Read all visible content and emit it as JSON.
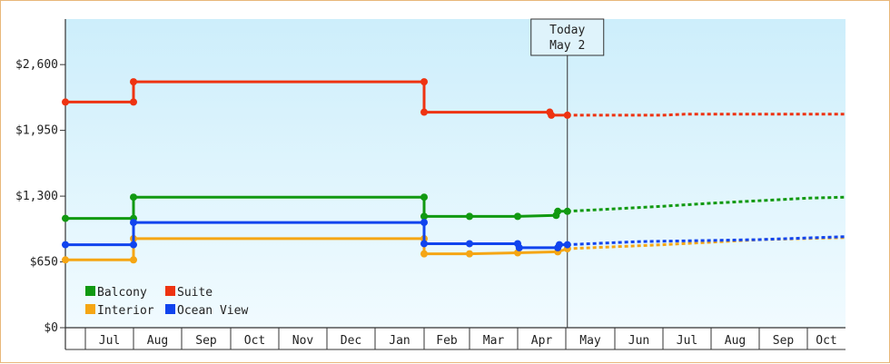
{
  "chart_data": {
    "type": "line",
    "title": "",
    "xlabel": "",
    "ylabel": "",
    "x_axis_months": [
      "Jul",
      "Aug",
      "Sep",
      "Oct",
      "Nov",
      "Dec",
      "Jan",
      "Feb",
      "Mar",
      "Apr",
      "May",
      "Jun",
      "Jul",
      "Aug",
      "Sep",
      "Oct"
    ],
    "yticks": [
      0,
      650,
      1300,
      1950,
      2600
    ],
    "ytick_labels": [
      "$0",
      "$650",
      "$1,300",
      "$1,950",
      "$2,600"
    ],
    "ylim": [
      0,
      3050
    ],
    "grid": false,
    "legend_position": "bottom-left",
    "today_marker": {
      "line1": "Today",
      "line2": "May 2",
      "date": "May 2"
    },
    "series": [
      {
        "name": "Balcony",
        "color": "#119911",
        "history": [
          {
            "date": "Jun 1",
            "value": 1080
          },
          {
            "date": "Aug 1",
            "value": 1080
          },
          {
            "date": "Aug 1",
            "value": 1290
          },
          {
            "date": "Feb 1",
            "value": 1290
          },
          {
            "date": "Feb 1",
            "value": 1100
          },
          {
            "date": "Mar 1",
            "value": 1100
          },
          {
            "date": "Apr 1",
            "value": 1100
          },
          {
            "date": "Apr 25",
            "value": 1110
          },
          {
            "date": "Apr 26",
            "value": 1150
          },
          {
            "date": "May 2",
            "value": 1150
          }
        ],
        "forecast": [
          {
            "date": "May 2",
            "value": 1150
          },
          {
            "date": "Jul 1",
            "value": 1200
          },
          {
            "date": "Aug 1",
            "value": 1230
          },
          {
            "date": "Oct 1",
            "value": 1280
          },
          {
            "date": "Oct 31",
            "value": 1290
          }
        ]
      },
      {
        "name": "Suite",
        "color": "#ee3311",
        "history": [
          {
            "date": "Jun 1",
            "value": 2230
          },
          {
            "date": "Aug 1",
            "value": 2230
          },
          {
            "date": "Aug 1",
            "value": 2430
          },
          {
            "date": "Feb 1",
            "value": 2430
          },
          {
            "date": "Feb 1",
            "value": 2130
          },
          {
            "date": "Apr 21",
            "value": 2130
          },
          {
            "date": "Apr 22",
            "value": 2100
          },
          {
            "date": "May 2",
            "value": 2100
          }
        ],
        "forecast": [
          {
            "date": "May 2",
            "value": 2100
          },
          {
            "date": "Jul 1",
            "value": 2100
          },
          {
            "date": "Jul 15",
            "value": 2110
          },
          {
            "date": "Oct 31",
            "value": 2110
          }
        ]
      },
      {
        "name": "Interior",
        "color": "#f5a614",
        "history": [
          {
            "date": "Jun 1",
            "value": 670
          },
          {
            "date": "Aug 1",
            "value": 670
          },
          {
            "date": "Aug 1",
            "value": 880
          },
          {
            "date": "Feb 1",
            "value": 880
          },
          {
            "date": "Feb 1",
            "value": 730
          },
          {
            "date": "Mar 1",
            "value": 730
          },
          {
            "date": "Apr 1",
            "value": 740
          },
          {
            "date": "Apr 26",
            "value": 750
          },
          {
            "date": "May 2",
            "value": 780
          }
        ],
        "forecast": [
          {
            "date": "May 2",
            "value": 780
          },
          {
            "date": "Jul 1",
            "value": 820
          },
          {
            "date": "Sep 1",
            "value": 870
          },
          {
            "date": "Oct 31",
            "value": 890
          }
        ]
      },
      {
        "name": "Ocean View",
        "color": "#1144ee",
        "history": [
          {
            "date": "Jun 1",
            "value": 820
          },
          {
            "date": "Aug 1",
            "value": 820
          },
          {
            "date": "Aug 1",
            "value": 1040
          },
          {
            "date": "Feb 1",
            "value": 1040
          },
          {
            "date": "Feb 1",
            "value": 830
          },
          {
            "date": "Mar 1",
            "value": 830
          },
          {
            "date": "Apr 1",
            "value": 830
          },
          {
            "date": "Apr 2",
            "value": 790
          },
          {
            "date": "Apr 26",
            "value": 790
          },
          {
            "date": "Apr 27",
            "value": 820
          },
          {
            "date": "May 2",
            "value": 820
          }
        ],
        "forecast": [
          {
            "date": "May 2",
            "value": 820
          },
          {
            "date": "Jun 15",
            "value": 850
          },
          {
            "date": "Sep 1",
            "value": 870
          },
          {
            "date": "Oct 31",
            "value": 900
          }
        ]
      }
    ],
    "legend_order": [
      "Balcony",
      "Suite",
      "Interior",
      "Ocean View"
    ]
  }
}
